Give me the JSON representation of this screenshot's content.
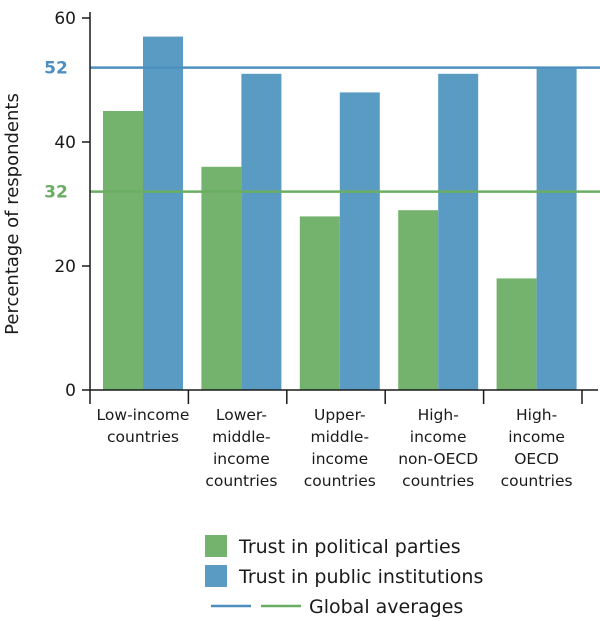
{
  "chart_data": {
    "type": "bar",
    "ylabel": "Percentage of respondents",
    "ylim": [
      0,
      60
    ],
    "yticks": [
      0,
      20,
      40,
      60
    ],
    "categories": [
      [
        "Low-income",
        "countries"
      ],
      [
        "Lower-",
        "middle-",
        "income",
        "countries"
      ],
      [
        "Upper-",
        "middle-",
        "income",
        "countries"
      ],
      [
        "High-",
        "income",
        "non-OECD",
        "countries"
      ],
      [
        "High-",
        "income",
        "OECD",
        "countries"
      ]
    ],
    "series": [
      {
        "name": "Trust in political parties",
        "color": "#74b36d",
        "values": [
          45,
          36,
          28,
          29,
          18
        ]
      },
      {
        "name": "Trust in public institutions",
        "color": "#5a9bc4",
        "values": [
          57,
          51,
          48,
          51,
          52
        ]
      }
    ],
    "reference_lines": [
      {
        "value": 52,
        "label": "52",
        "color": "#4d90c0"
      },
      {
        "value": 32,
        "label": "32",
        "color": "#6aae63"
      }
    ],
    "legend": {
      "placement": "bottom",
      "items": [
        "Trust in political parties",
        "Trust in public institutions"
      ],
      "averages_label": "Global averages"
    },
    "grid": false
  }
}
